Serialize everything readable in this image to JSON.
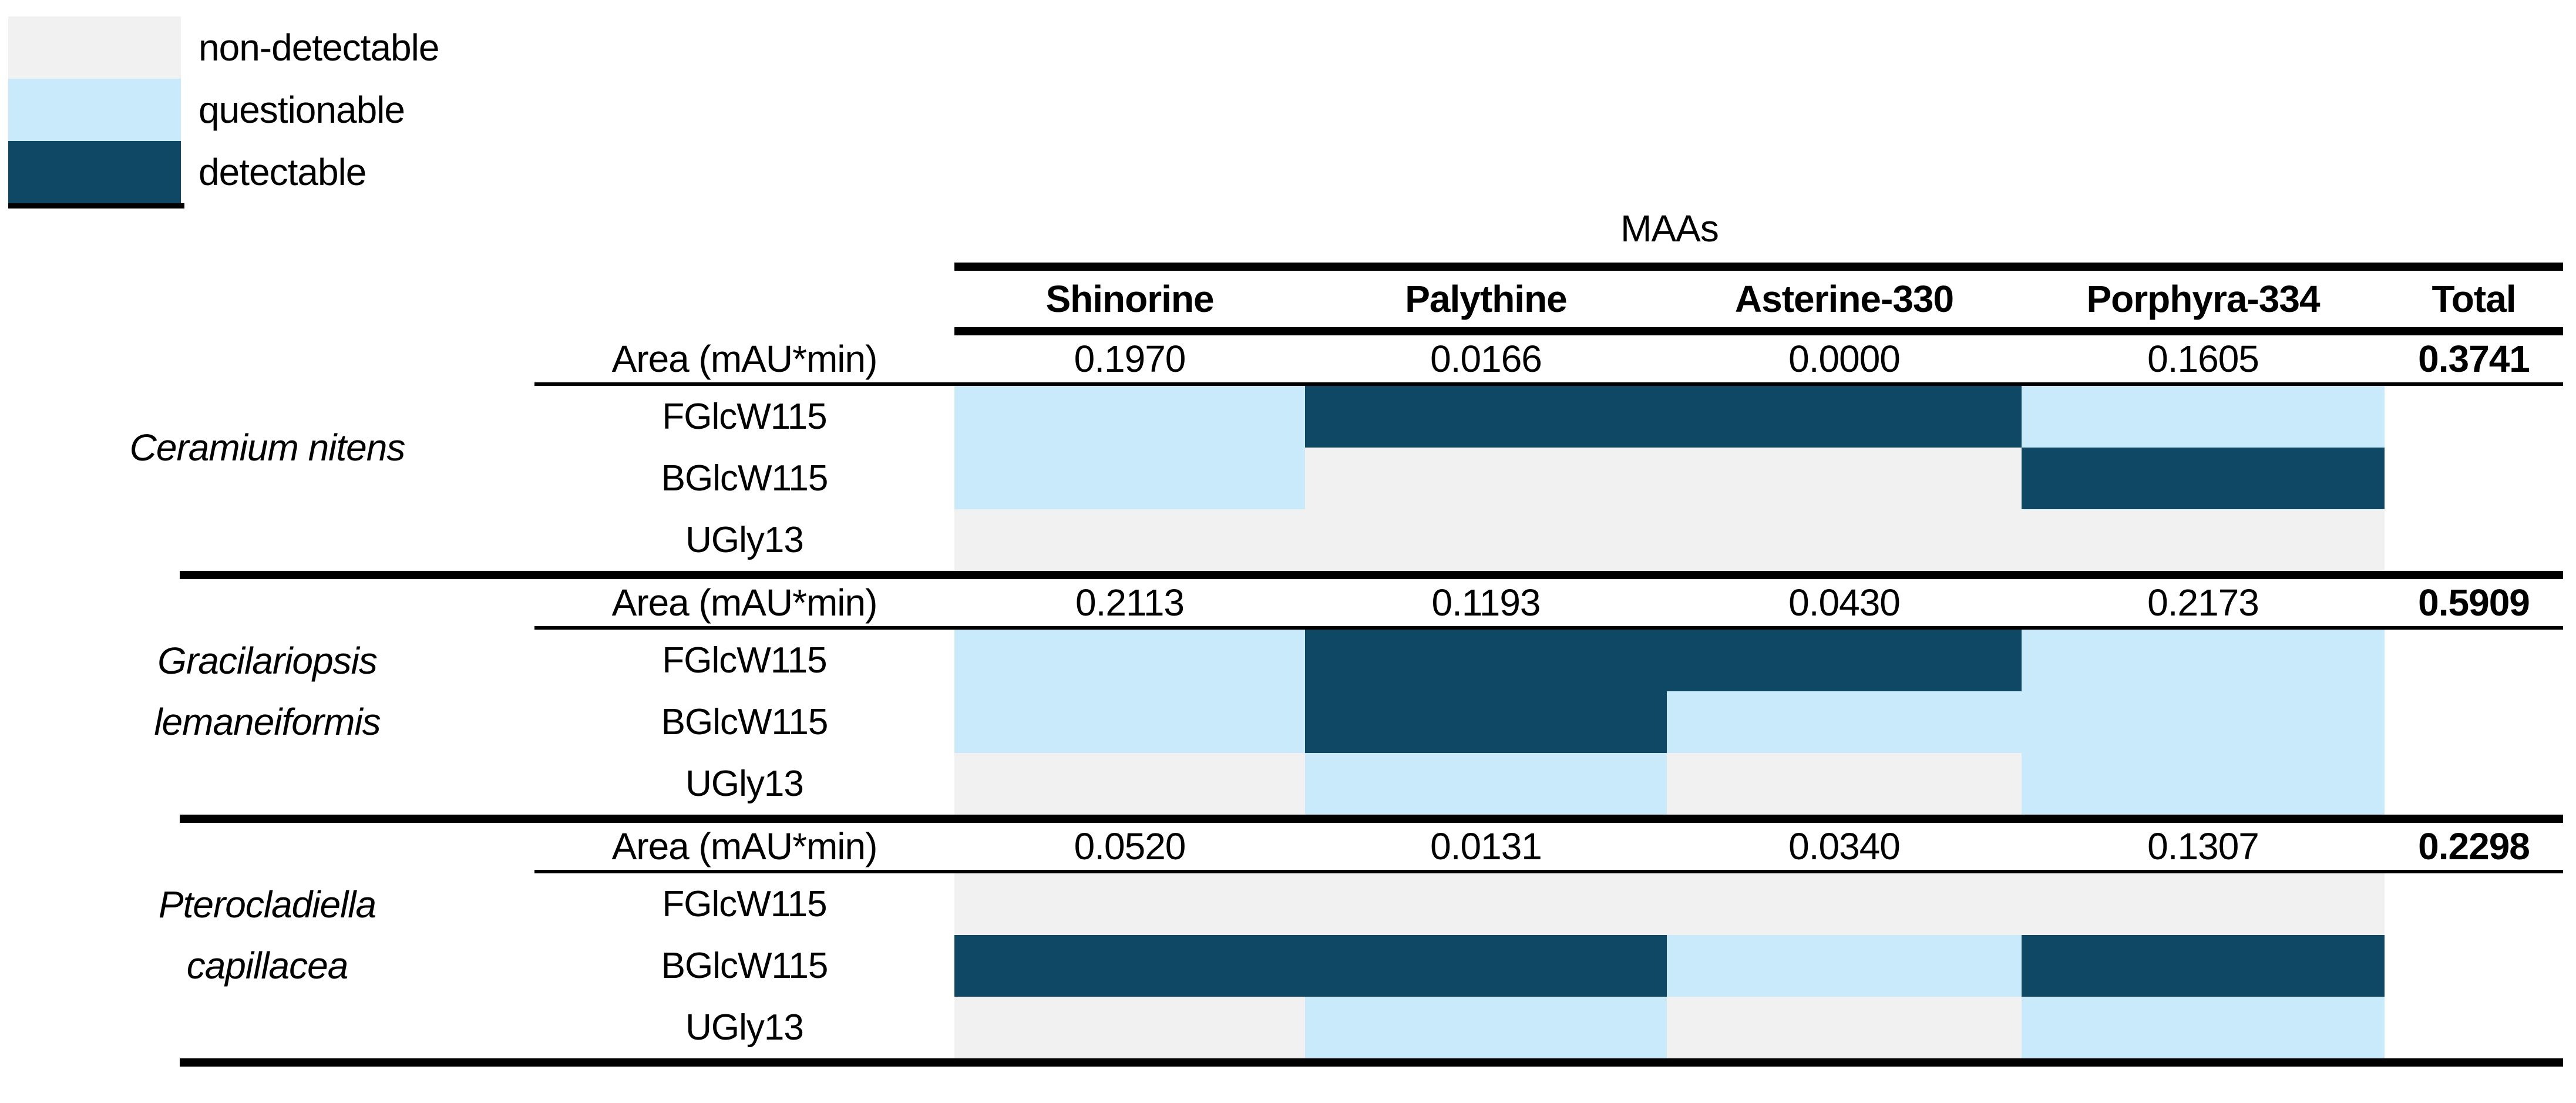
{
  "legend": {
    "items": [
      {
        "label": "non-detectable",
        "color": "#f2f1f1"
      },
      {
        "label": "questionable",
        "color": "#c9eafb"
      },
      {
        "label": "detectable",
        "color": "#0f4864"
      }
    ]
  },
  "table": {
    "group_header": "MAAs",
    "column_headers": [
      "Shinorine",
      "Palythine",
      "Asterine-330",
      "Porphyra-334",
      "Total"
    ]
  },
  "chart_data": {
    "type": "heatmap",
    "title": "MAAs",
    "columns": [
      "Shinorine",
      "Palythine",
      "Asterine-330",
      "Porphyra-334"
    ],
    "value_label": "Area (mAU*min)",
    "status_levels": [
      "non-detectable",
      "questionable",
      "detectable"
    ],
    "species": [
      {
        "name_lines": [
          "Ceramium nitens"
        ],
        "area_values": [
          "0.1970",
          "0.0166",
          "0.0000",
          "0.1605"
        ],
        "total": "0.3741",
        "rows": [
          {
            "label": "FGlcW115",
            "status": [
              "questionable",
              "detectable",
              "detectable",
              "questionable"
            ]
          },
          {
            "label": "BGlcW115",
            "status": [
              "questionable",
              "non-detectable",
              "non-detectable",
              "detectable"
            ]
          },
          {
            "label": "UGly13",
            "status": [
              "non-detectable",
              "non-detectable",
              "non-detectable",
              "non-detectable"
            ]
          }
        ]
      },
      {
        "name_lines": [
          "Gracilariopsis",
          "lemaneiformis"
        ],
        "area_values": [
          "0.2113",
          "0.1193",
          "0.0430",
          "0.2173"
        ],
        "total": "0.5909",
        "rows": [
          {
            "label": "FGlcW115",
            "status": [
              "questionable",
              "detectable",
              "detectable",
              "questionable"
            ]
          },
          {
            "label": "BGlcW115",
            "status": [
              "questionable",
              "detectable",
              "questionable",
              "questionable"
            ]
          },
          {
            "label": "UGly13",
            "status": [
              "non-detectable",
              "questionable",
              "non-detectable",
              "questionable"
            ]
          }
        ]
      },
      {
        "name_lines": [
          "Pterocladiella",
          "capillacea"
        ],
        "area_values": [
          "0.0520",
          "0.0131",
          "0.0340",
          "0.1307"
        ],
        "total": "0.2298",
        "rows": [
          {
            "label": "FGlcW115",
            "status": [
              "non-detectable",
              "non-detectable",
              "non-detectable",
              "non-detectable"
            ]
          },
          {
            "label": "BGlcW115",
            "status": [
              "detectable",
              "detectable",
              "questionable",
              "detectable"
            ]
          },
          {
            "label": "UGly13",
            "status": [
              "non-detectable",
              "questionable",
              "non-detectable",
              "questionable"
            ]
          }
        ]
      }
    ]
  }
}
